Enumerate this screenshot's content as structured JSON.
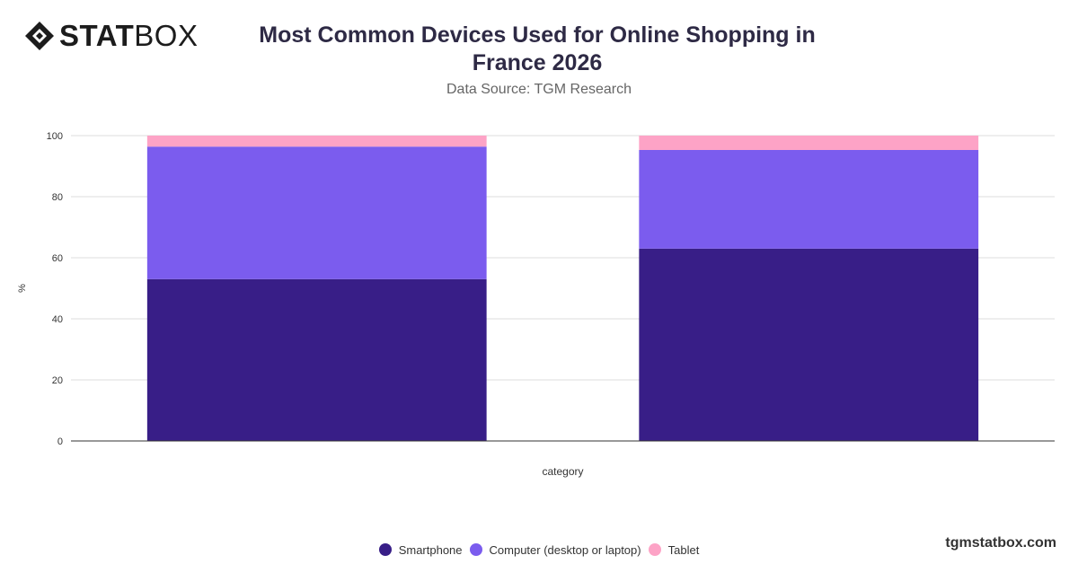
{
  "brand": {
    "logo_bold": "STAT",
    "logo_light": "BOX",
    "footer": "tgmstatbox.com"
  },
  "chart_data": {
    "type": "bar",
    "stacked": true,
    "title": "Most Common Devices Used for Online Shopping in France 2026",
    "subtitle": "Data Source: TGM Research",
    "xlabel": "category",
    "ylabel": "%",
    "ylim": [
      0,
      100
    ],
    "yticks": [
      0,
      20,
      40,
      60,
      80,
      100
    ],
    "categories": [
      "",
      ""
    ],
    "grid": true,
    "legend_position": "bottom",
    "series": [
      {
        "name": "Smartphone",
        "color": "#381E87",
        "values": [
          53,
          63
        ]
      },
      {
        "name": "Computer (desktop or laptop)",
        "color": "#7B5CEE",
        "values": [
          43.4,
          32.3
        ]
      },
      {
        "name": "Tablet",
        "color": "#FDA3C6",
        "values": [
          3.6,
          4.7
        ]
      }
    ]
  }
}
